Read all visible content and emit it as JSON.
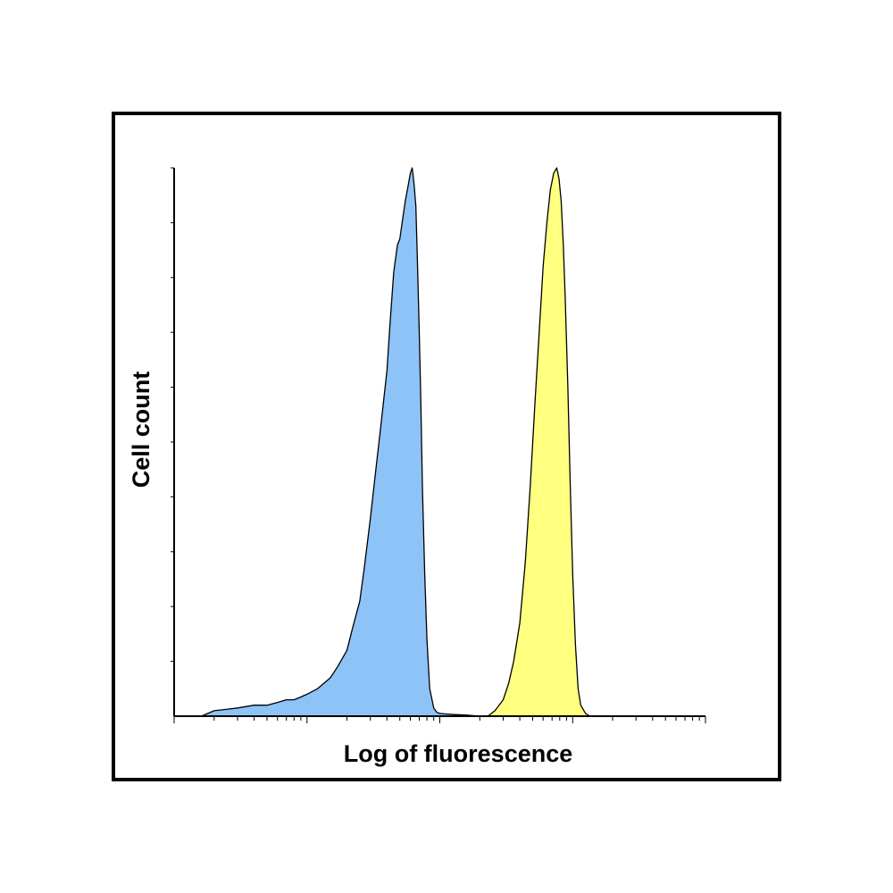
{
  "chart_data": {
    "type": "area",
    "title": "",
    "xlabel": "Log of fluorescence",
    "ylabel": "Cell count",
    "xscale": "log",
    "xlim": [
      1,
      10000
    ],
    "ylim": [
      0,
      1
    ],
    "x_ticks_labeled": false,
    "y_ticks_labeled": false,
    "grid": false,
    "legend": "none",
    "colors": {
      "frame": "#000000",
      "series_1_fill": "#8ec3f7",
      "series_2_fill": "#ffff80",
      "outline": "#000000"
    },
    "series": [
      {
        "x": [
          1.6,
          2.0,
          3.0,
          4.0,
          5.0,
          6.0,
          7.0,
          8.0,
          9.0,
          10.0,
          12.0,
          15.0,
          17.0,
          20.0,
          22.0,
          25.0,
          27.0,
          30.0,
          33.0,
          36.0,
          40.0,
          42.0,
          45.0,
          48.0,
          50.0,
          52.0,
          55.0,
          57.0,
          60.0,
          62.0,
          64.0,
          66.0,
          68.0,
          70.0,
          72.0,
          74.0,
          77.0,
          80.0,
          84.0,
          90.0,
          95.0,
          100.0,
          110.0,
          130.0,
          160.0,
          200.0
        ],
        "y": [
          0.0,
          0.01,
          0.015,
          0.02,
          0.02,
          0.025,
          0.03,
          0.03,
          0.035,
          0.04,
          0.05,
          0.07,
          0.09,
          0.12,
          0.16,
          0.21,
          0.27,
          0.36,
          0.45,
          0.53,
          0.63,
          0.71,
          0.81,
          0.86,
          0.87,
          0.9,
          0.94,
          0.96,
          0.99,
          1.0,
          0.97,
          0.93,
          0.82,
          0.7,
          0.57,
          0.42,
          0.26,
          0.14,
          0.05,
          0.015,
          0.007,
          0.005,
          0.004,
          0.003,
          0.002,
          0.0
        ]
      },
      {
        "x": [
          230.0,
          260.0,
          300.0,
          330.0,
          360.0,
          400.0,
          440.0,
          480.0,
          520.0,
          560.0,
          600.0,
          640.0,
          680.0,
          720.0,
          760.0,
          790.0,
          820.0,
          850.0,
          880.0,
          920.0,
          960.0,
          1000.0,
          1050.0,
          1100.0,
          1150.0,
          1250.0,
          1350.0
        ],
        "y": [
          0.0,
          0.01,
          0.03,
          0.06,
          0.1,
          0.17,
          0.28,
          0.42,
          0.57,
          0.7,
          0.82,
          0.9,
          0.96,
          0.99,
          1.0,
          0.98,
          0.94,
          0.86,
          0.76,
          0.6,
          0.42,
          0.26,
          0.13,
          0.05,
          0.02,
          0.005,
          0.0
        ]
      }
    ]
  }
}
